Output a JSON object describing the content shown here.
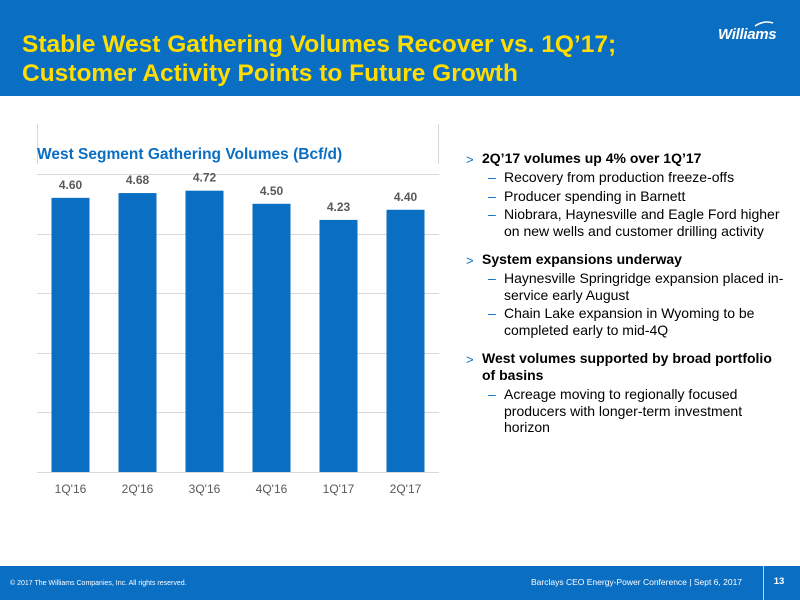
{
  "header": {
    "title_line1": "Stable West Gathering Volumes Recover vs. 1Q’17;",
    "title_line2": "Customer Activity Points to Future Growth",
    "logo_text": "Williams"
  },
  "chart_data": {
    "type": "bar",
    "title": "West Segment Gathering Volumes (Bcf/d)",
    "categories": [
      "1Q'16",
      "2Q'16",
      "3Q'16",
      "4Q'16",
      "1Q'17",
      "2Q'17"
    ],
    "values": [
      4.6,
      4.68,
      4.72,
      4.5,
      4.23,
      4.4
    ],
    "data_labels": [
      "4.60",
      "4.68",
      "4.72",
      "4.50",
      "4.23",
      "4.40"
    ],
    "xlabel": "",
    "ylabel": "",
    "ylim": [
      0,
      5
    ],
    "grid": true,
    "bar_color": "#0a6ec2"
  },
  "bullets": [
    {
      "text": "2Q’17 volumes up 4% over 1Q’17",
      "subs": [
        "Recovery from production freeze-offs",
        "Producer spending in Barnett",
        "Niobrara, Haynesville and Eagle Ford higher on new wells and customer drilling activity"
      ]
    },
    {
      "text": "System expansions underway",
      "subs": [
        "Haynesville Springridge expansion placed in-service early August",
        "Chain Lake expansion in Wyoming to be completed early to mid-4Q"
      ]
    },
    {
      "text": "West volumes supported by broad portfolio of basins",
      "subs": [
        "Acreage moving to regionally focused producers with longer-term investment horizon"
      ]
    }
  ],
  "footer": {
    "copyright": "© 2017 The Williams Companies, Inc. All rights reserved.",
    "event": "Barclays CEO Energy-Power Conference | Sept 6, 2017",
    "page": "13"
  },
  "colors": {
    "brand_blue": "#0a6ec2",
    "title_yellow": "#ffdd00"
  }
}
